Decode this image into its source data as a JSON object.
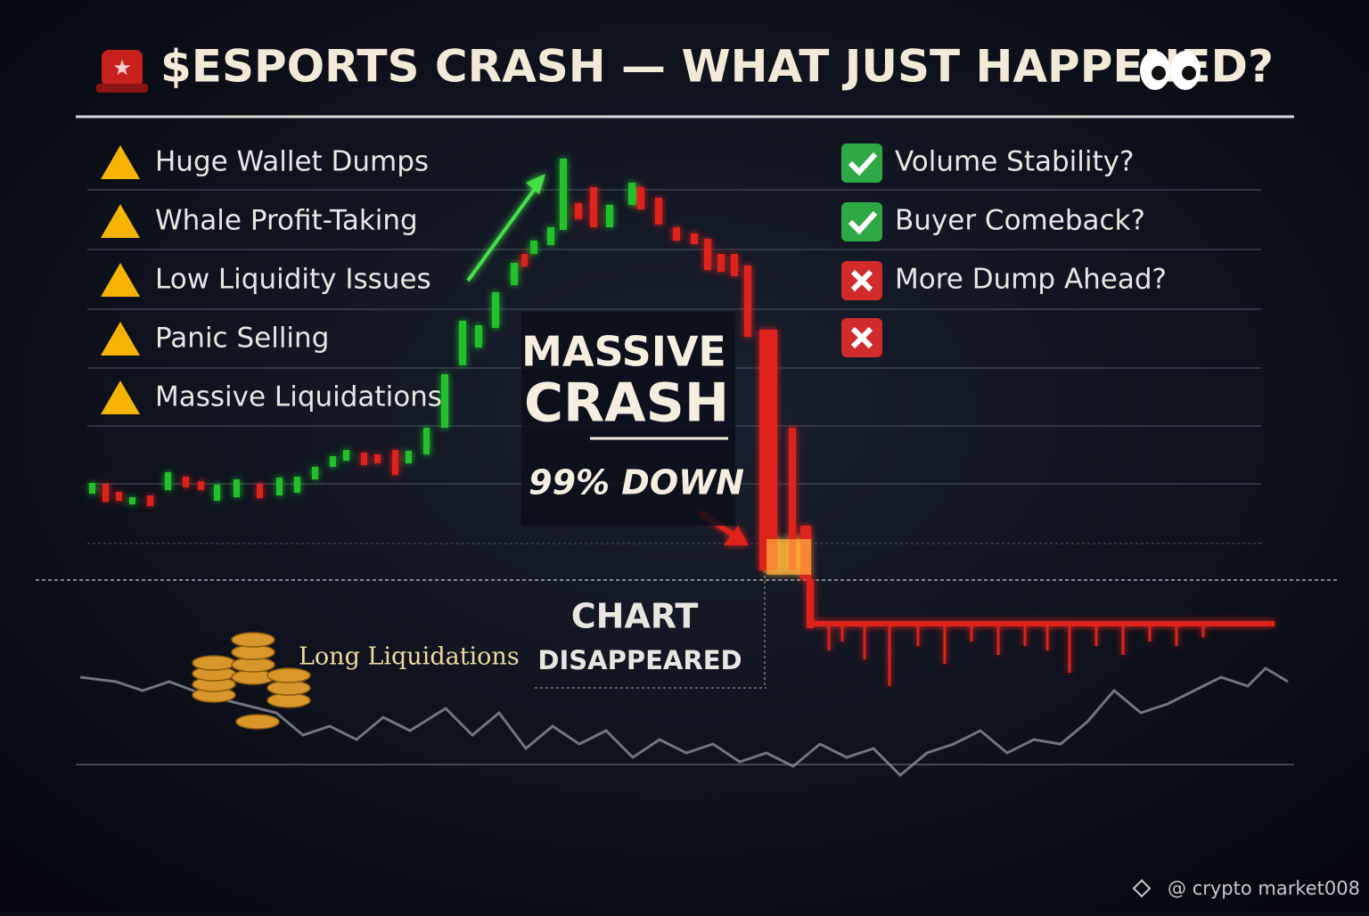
{
  "header": {
    "title": "$ESPORTS CRASH — WHAT JUST HAPPENED?"
  },
  "left_list": [
    "Huge Wallet Dumps",
    "Whale Profit-Taking",
    "Low Liquidity Issues",
    "Panic Selling",
    "Massive Liquidations"
  ],
  "right_list": [
    "Volume Stability?",
    "Buyer Comeback?",
    "More Dump Ahead?"
  ],
  "callout": {
    "line1": "MASSIVE",
    "line2": "CRASH",
    "subline": "99% DOWN"
  },
  "chart_status": {
    "line1": "CHART",
    "line2": "DISAPPEARED"
  },
  "liquidation_label": "Long Liquidations",
  "watermark": "@ crypto market008"
}
